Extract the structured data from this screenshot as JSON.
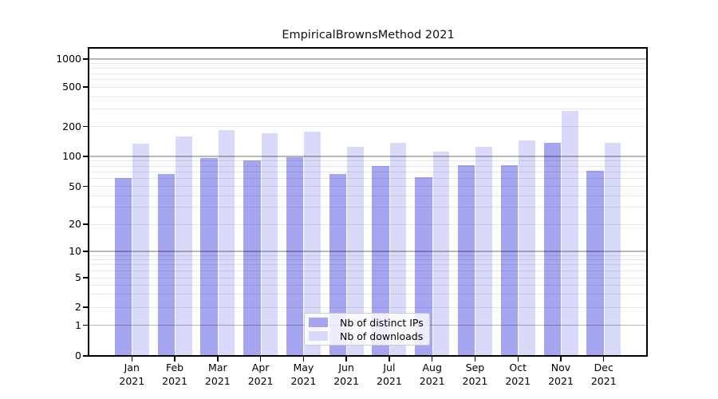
{
  "title": "EmpiricalBrownsMethod 2021",
  "legend": {
    "items": [
      {
        "label": "Nb of distinct IPs",
        "color": "#a5a5f0"
      },
      {
        "label": "Nb of downloads",
        "color": "#d9d9f9"
      }
    ]
  },
  "x_axis": {
    "months": [
      "Jan",
      "Feb",
      "Mar",
      "Apr",
      "May",
      "Jun",
      "Jul",
      "Aug",
      "Sep",
      "Oct",
      "Nov",
      "Dec"
    ],
    "year": "2021"
  },
  "y_axis": {
    "tick_labels": [
      "0",
      "1",
      "2",
      "5",
      "10",
      "20",
      "50",
      "100",
      "200",
      "500",
      "1000"
    ]
  },
  "chart_data": {
    "type": "bar",
    "title": "EmpiricalBrownsMethod 2021",
    "categories": [
      "Jan 2021",
      "Feb 2021",
      "Mar 2021",
      "Apr 2021",
      "May 2021",
      "Jun 2021",
      "Jul 2021",
      "Aug 2021",
      "Sep 2021",
      "Oct 2021",
      "Nov 2021",
      "Dec 2021"
    ],
    "series": [
      {
        "name": "Nb of distinct IPs",
        "color": "#a5a5f0",
        "values": [
          61,
          66,
          96,
          92,
          99,
          66,
          80,
          62,
          82,
          82,
          136,
          72
        ]
      },
      {
        "name": "Nb of downloads",
        "color": "#d9d9f9",
        "values": [
          134,
          159,
          185,
          170,
          178,
          124,
          136,
          112,
          125,
          146,
          286,
          136
        ]
      }
    ],
    "yscale": "log above 1 with linear 0-1 segment (symlog-style, 0 baseline shown)",
    "yticks": [
      0,
      1,
      2,
      5,
      10,
      20,
      50,
      100,
      200,
      500,
      1000
    ],
    "ylim": [
      0,
      1300
    ],
    "grid": "horizontal major (1,10,100,1000) + minor (2-9 per decade)",
    "legend_position": "lower center inside plot"
  }
}
